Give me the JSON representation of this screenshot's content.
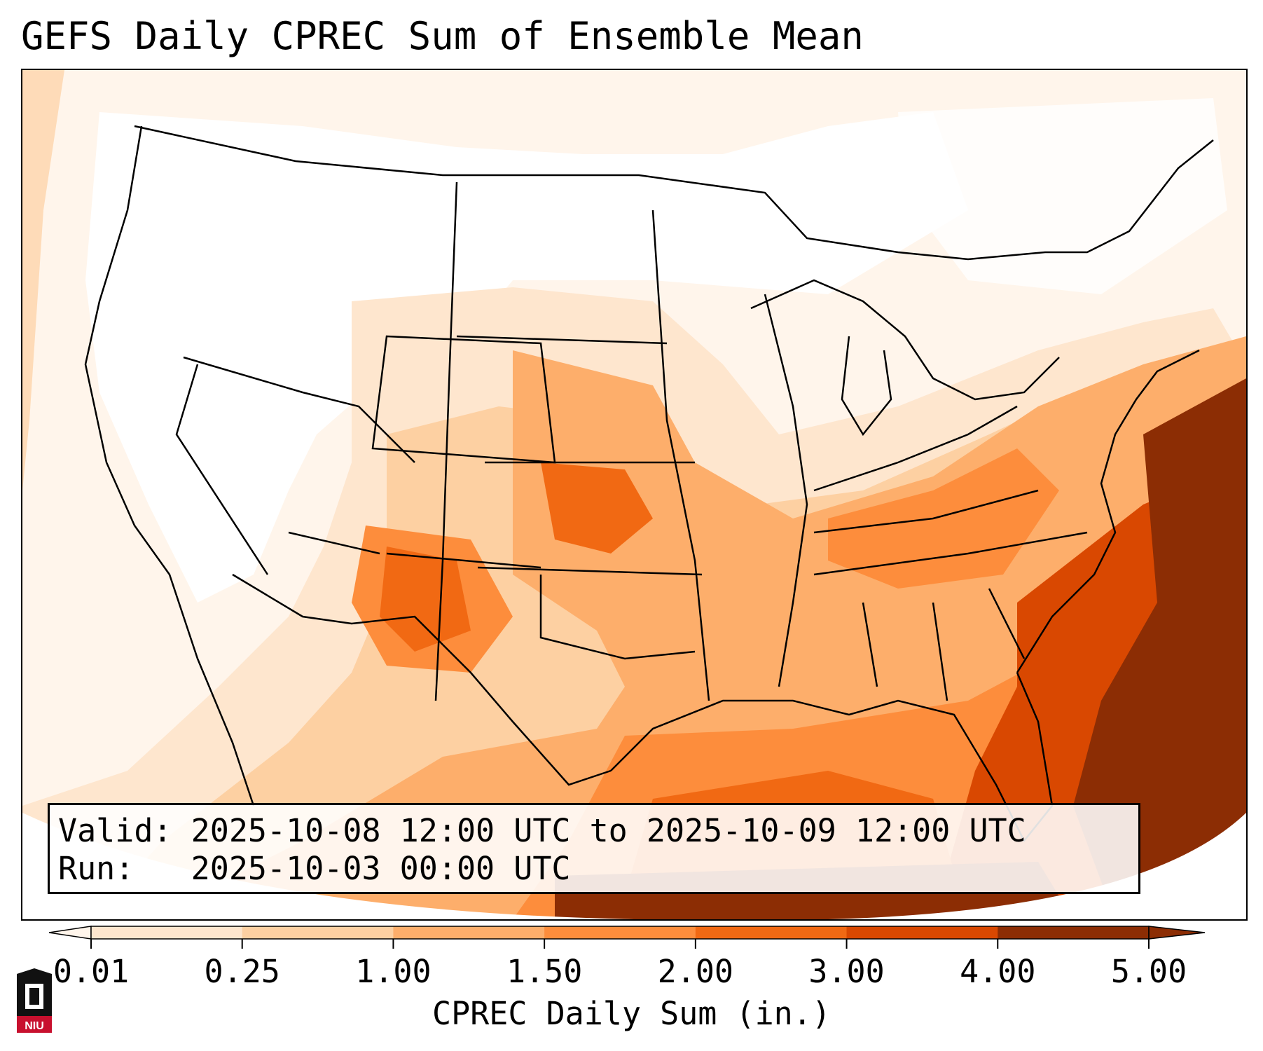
{
  "title": "GEFS Daily CPREC Sum of Ensemble Mean",
  "info": {
    "valid_label": "Valid:",
    "valid_value": "2025-10-08 12:00 UTC to 2025-10-09 12:00 UTC",
    "run_label": "Run:",
    "run_value": "2025-10-03 00:00 UTC"
  },
  "colorbar": {
    "label": "CPREC Daily Sum (in.)",
    "ticks": [
      "0.01",
      "0.25",
      "1.00",
      "1.50",
      "2.00",
      "3.00",
      "4.00",
      "5.00"
    ],
    "colors": [
      "#fff5eb",
      "#fee6ce",
      "#fdd0a2",
      "#fdae6b",
      "#fd8d3c",
      "#f16913",
      "#d94801",
      "#8c2d04"
    ]
  },
  "logo": {
    "text": "NIU",
    "colors": {
      "red": "#c8102e",
      "black": "#111111"
    }
  },
  "map_colors": {
    "background": "#fff5eb",
    "c1": "#fee6ce",
    "c2": "#fdd0a2",
    "c3": "#fdae6b",
    "c4": "#fd8d3c",
    "c5": "#f16913",
    "c6": "#d94801",
    "c7": "#8c2d04"
  }
}
